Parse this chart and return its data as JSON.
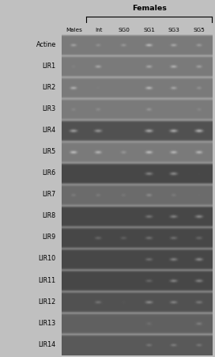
{
  "title": "Females",
  "col_labels": [
    "Males",
    "Int",
    "SG0",
    "SG1",
    "SG3",
    "SG5"
  ],
  "row_labels": [
    "Actine",
    "LIR1",
    "LIR2",
    "LIR3",
    "LIR4",
    "LIR5",
    "LIR6",
    "LIR7",
    "LIR8",
    "LIR9",
    "LIR10",
    "LIR11",
    "LIR12",
    "LIR13",
    "LIR14"
  ],
  "band_intensity": [
    [
      0.78,
      0.68,
      0.72,
      0.92,
      0.82,
      0.75
    ],
    [
      0.58,
      0.82,
      0.05,
      0.82,
      0.88,
      0.78
    ],
    [
      0.88,
      0.55,
      0.28,
      0.92,
      0.82,
      0.68
    ],
    [
      0.62,
      0.65,
      0.05,
      0.72,
      0.05,
      0.62
    ],
    [
      0.82,
      0.78,
      0.05,
      0.88,
      0.88,
      0.92
    ],
    [
      0.97,
      0.92,
      0.72,
      0.97,
      0.93,
      0.93
    ],
    [
      0.05,
      0.05,
      0.05,
      0.68,
      0.72,
      0.32
    ],
    [
      0.58,
      0.58,
      0.55,
      0.68,
      0.58,
      0.48
    ],
    [
      0.05,
      0.05,
      0.05,
      0.62,
      0.68,
      0.72
    ],
    [
      0.05,
      0.52,
      0.48,
      0.58,
      0.58,
      0.52
    ],
    [
      0.05,
      0.05,
      0.05,
      0.58,
      0.68,
      0.72
    ],
    [
      0.05,
      0.05,
      0.05,
      0.52,
      0.68,
      0.68
    ],
    [
      0.05,
      0.58,
      0.38,
      0.72,
      0.68,
      0.62
    ],
    [
      0.05,
      0.05,
      0.38,
      0.52,
      0.05,
      0.62
    ],
    [
      0.05,
      0.05,
      0.05,
      0.58,
      0.62,
      0.58
    ]
  ],
  "row_bg_level": [
    0.48,
    0.48,
    0.48,
    0.48,
    0.32,
    0.48,
    0.28,
    0.42,
    0.28,
    0.28,
    0.28,
    0.28,
    0.32,
    0.38,
    0.35
  ],
  "figure_bg": "#c0c0c0",
  "separator_color": "#e8e8e8",
  "label_fontsize": 5.8,
  "col_fontsize": 5.2,
  "title_fontsize": 6.8
}
